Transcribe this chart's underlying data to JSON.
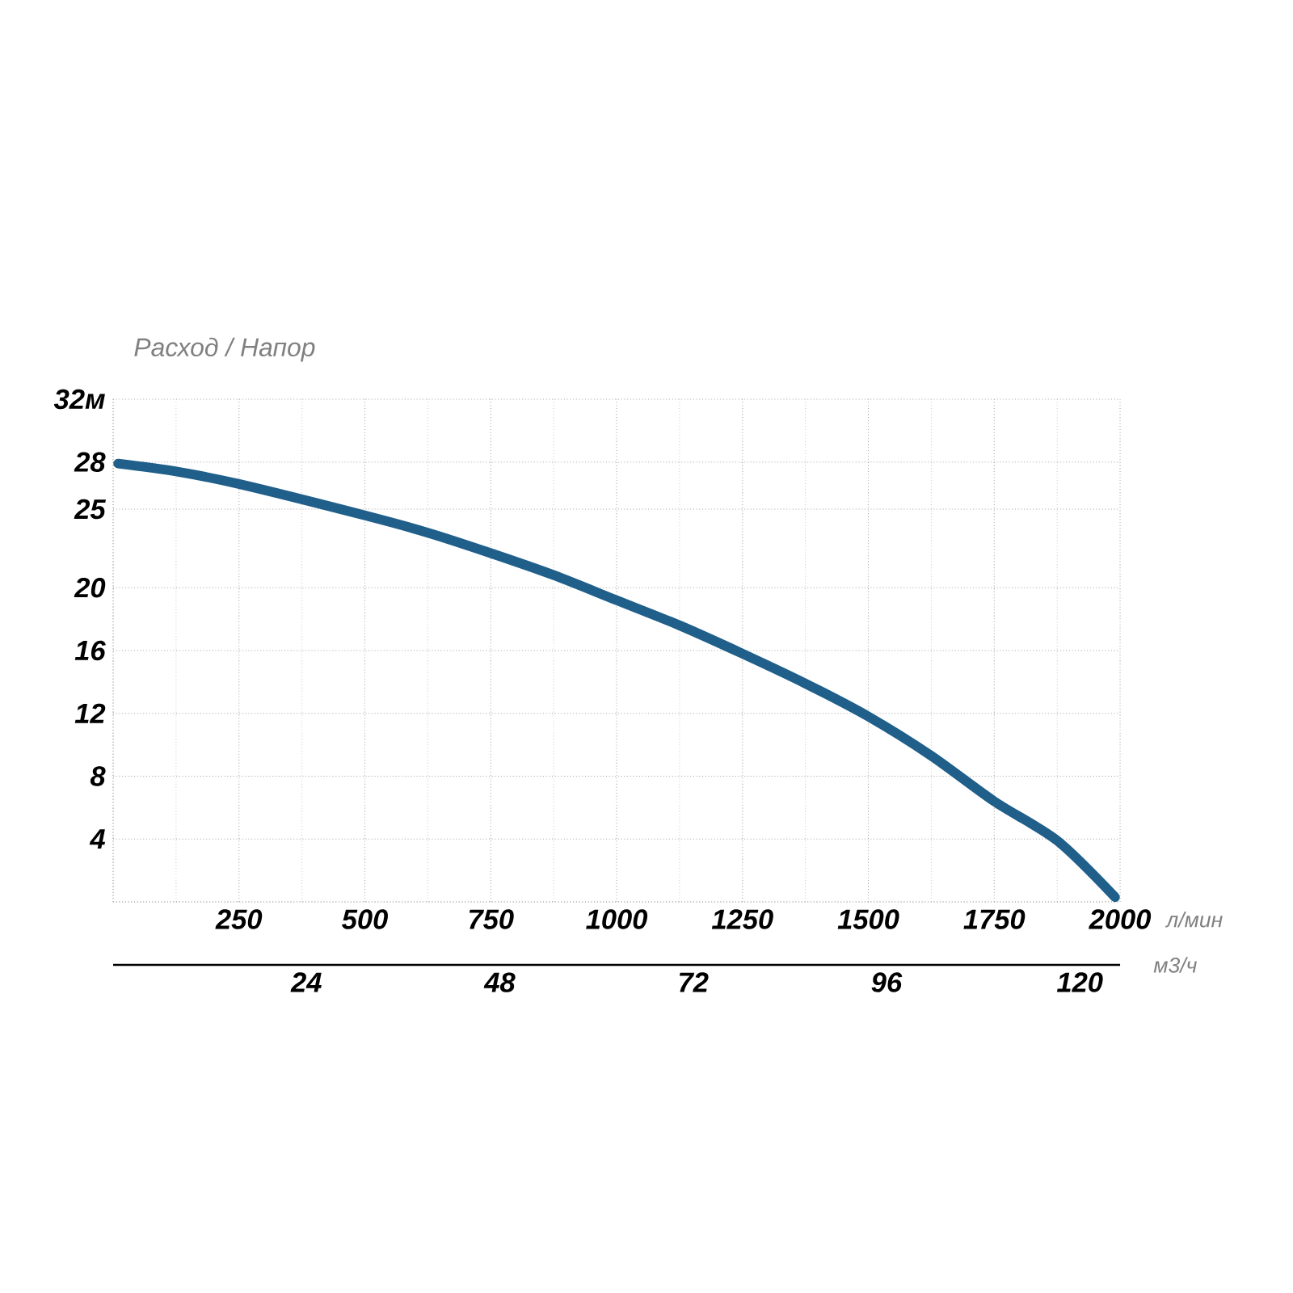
{
  "chart_data": {
    "type": "line",
    "ylabel": "Расход / Напор",
    "xlabel": "л/мин",
    "x2label": "м3/ч",
    "x": [
      10,
      125,
      250,
      500,
      625,
      750,
      875,
      1000,
      1125,
      1250,
      1375,
      1500,
      1625,
      1750,
      1875,
      1990
    ],
    "series": [
      {
        "color": "#1f5f8a",
        "values": [
          27.9,
          27.4,
          26.6,
          24.6,
          23.5,
          22.2,
          20.8,
          19.2,
          17.6,
          15.8,
          13.9,
          11.8,
          9.3,
          6.4,
          3.9,
          0.3
        ]
      }
    ],
    "xlim": [
      0,
      2000
    ],
    "ylim": [
      0,
      32
    ],
    "xticks": [
      {
        "value": 0,
        "label": null
      },
      250,
      500,
      750,
      1000,
      1250,
      1500,
      1750,
      2000
    ],
    "yticks": [
      {
        "value": 0,
        "label": null
      },
      4,
      8,
      12,
      16,
      20,
      25,
      28,
      {
        "value": 32,
        "label": "32м"
      }
    ],
    "x2lim": [
      0,
      125
    ],
    "x2ticks": [
      24,
      48,
      72,
      96,
      120
    ],
    "grid": true
  }
}
